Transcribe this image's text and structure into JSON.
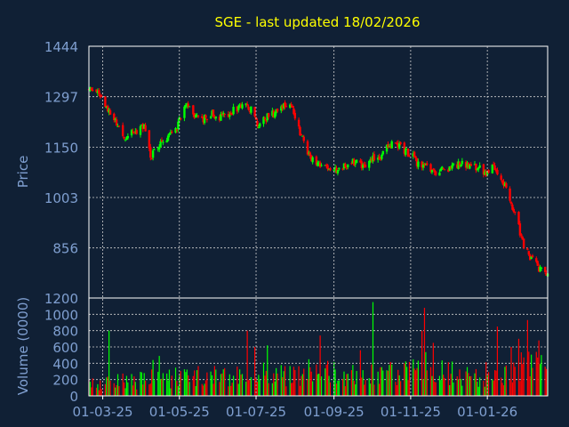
{
  "colors": {
    "background": "#102035",
    "title": "#ffff00",
    "axis_text": "#7f9fd0",
    "frame": "#ffffff",
    "grid": "#d0d0d0",
    "up": "#00ff00",
    "down": "#ff0000"
  },
  "chart_data": {
    "type": "candlestick",
    "title": "SGE - last updated 18/02/2026",
    "grid": true,
    "price_panel": {
      "ylabel": "Price",
      "ylim": [
        710,
        1444
      ],
      "yticks": [
        {
          "value": 1444,
          "label": "1444"
        },
        {
          "value": 1297,
          "label": "1297"
        },
        {
          "value": 1150,
          "label": "1150"
        },
        {
          "value": 1003,
          "label": "1003"
        },
        {
          "value": 856,
          "label": "856"
        },
        {
          "value": 710,
          "label": ""
        }
      ]
    },
    "volume_panel": {
      "ylabel": "Volume (0000)",
      "ylim": [
        0,
        1200
      ],
      "yticks": [
        {
          "value": 0,
          "label": "0"
        },
        {
          "value": 200,
          "label": "200"
        },
        {
          "value": 400,
          "label": "400"
        },
        {
          "value": 600,
          "label": "600"
        },
        {
          "value": 800,
          "label": "800"
        },
        {
          "value": 1000,
          "label": "1000"
        },
        {
          "value": 1200,
          "label": "1200"
        }
      ]
    },
    "x_axis": {
      "start": "2025-02-18",
      "end": "2026-02-18",
      "ticks": [
        {
          "date": "2025-03-01",
          "label": "01-03-25"
        },
        {
          "date": "2025-05-01",
          "label": "01-05-25"
        },
        {
          "date": "2025-07-01",
          "label": "01-07-25"
        },
        {
          "date": "2025-09-01",
          "label": "01-09-25"
        },
        {
          "date": "2025-11-01",
          "label": "01-11-25"
        },
        {
          "date": "2026-01-01",
          "label": "01-01-26"
        }
      ]
    },
    "price_path": [
      [
        "2025-02-18",
        1320
      ],
      [
        "2025-02-24",
        1315
      ],
      [
        "2025-03-01",
        1280
      ],
      [
        "2025-03-06",
        1255
      ],
      [
        "2025-03-12",
        1215
      ],
      [
        "2025-03-17",
        1175
      ],
      [
        "2025-03-22",
        1185
      ],
      [
        "2025-03-28",
        1195
      ],
      [
        "2025-04-02",
        1210
      ],
      [
        "2025-04-05",
        1205
      ],
      [
        "2025-04-08",
        1120
      ],
      [
        "2025-04-12",
        1150
      ],
      [
        "2025-04-17",
        1165
      ],
      [
        "2025-04-23",
        1185
      ],
      [
        "2025-04-30",
        1215
      ],
      [
        "2025-05-03",
        1255
      ],
      [
        "2025-05-08",
        1272
      ],
      [
        "2025-05-13",
        1245
      ],
      [
        "2025-05-20",
        1232
      ],
      [
        "2025-05-27",
        1248
      ],
      [
        "2025-06-03",
        1235
      ],
      [
        "2025-06-10",
        1252
      ],
      [
        "2025-06-17",
        1268
      ],
      [
        "2025-06-23",
        1272
      ],
      [
        "2025-06-27",
        1262
      ],
      [
        "2025-07-02",
        1210
      ],
      [
        "2025-07-06",
        1232
      ],
      [
        "2025-07-12",
        1240
      ],
      [
        "2025-07-18",
        1255
      ],
      [
        "2025-07-23",
        1268
      ],
      [
        "2025-07-27",
        1290
      ],
      [
        "2025-07-30",
        1262
      ],
      [
        "2025-08-02",
        1222
      ],
      [
        "2025-08-08",
        1165
      ],
      [
        "2025-08-13",
        1115
      ],
      [
        "2025-08-18",
        1100
      ],
      [
        "2025-08-26",
        1095
      ],
      [
        "2025-09-03",
        1085
      ],
      [
        "2025-09-10",
        1098
      ],
      [
        "2025-09-17",
        1105
      ],
      [
        "2025-09-24",
        1092
      ],
      [
        "2025-10-01",
        1118
      ],
      [
        "2025-10-08",
        1125
      ],
      [
        "2025-10-15",
        1158
      ],
      [
        "2025-10-20",
        1165
      ],
      [
        "2025-10-25",
        1150
      ],
      [
        "2025-10-30",
        1130
      ],
      [
        "2025-11-04",
        1118
      ],
      [
        "2025-11-09",
        1088
      ],
      [
        "2025-11-14",
        1092
      ],
      [
        "2025-11-20",
        1080
      ],
      [
        "2025-11-27",
        1085
      ],
      [
        "2025-12-05",
        1095
      ],
      [
        "2025-12-12",
        1098
      ],
      [
        "2025-12-20",
        1098
      ],
      [
        "2025-12-26",
        1085
      ],
      [
        "2026-01-02",
        1072
      ],
      [
        "2026-01-06",
        1095
      ],
      [
        "2026-01-10",
        1060
      ],
      [
        "2026-01-15",
        1040
      ],
      [
        "2026-01-20",
        985
      ],
      [
        "2026-01-24",
        950
      ],
      [
        "2026-01-28",
        880
      ],
      [
        "2026-02-02",
        840
      ],
      [
        "2026-02-08",
        810
      ],
      [
        "2026-02-13",
        790
      ],
      [
        "2026-02-18",
        778
      ]
    ],
    "volume_profile": [
      [
        "2025-02-18",
        150
      ],
      [
        "2025-04-01",
        230
      ],
      [
        "2025-05-01",
        250
      ],
      [
        "2025-07-01",
        300
      ],
      [
        "2025-08-15",
        330
      ],
      [
        "2025-10-01",
        280
      ],
      [
        "2025-11-10",
        420
      ],
      [
        "2025-12-15",
        250
      ],
      [
        "2026-01-15",
        360
      ],
      [
        "2026-02-18",
        420
      ]
    ],
    "volume_spikes": [
      [
        "2025-03-06",
        800
      ],
      [
        "2025-04-10",
        440
      ],
      [
        "2025-04-15",
        490
      ],
      [
        "2025-05-24",
        600
      ],
      [
        "2025-06-24",
        800
      ],
      [
        "2025-06-30",
        600
      ],
      [
        "2025-07-10",
        620
      ],
      [
        "2025-07-20",
        500
      ],
      [
        "2025-07-27",
        630
      ],
      [
        "2025-08-17",
        950
      ],
      [
        "2025-08-21",
        740
      ],
      [
        "2025-09-22",
        560
      ],
      [
        "2025-10-02",
        1150
      ],
      [
        "2025-10-25",
        600
      ],
      [
        "2025-11-01",
        590
      ],
      [
        "2025-11-10",
        800
      ],
      [
        "2025-11-12",
        1080
      ],
      [
        "2025-11-19",
        650
      ],
      [
        "2025-11-22",
        580
      ],
      [
        "2026-01-09",
        850
      ],
      [
        "2026-01-20",
        600
      ],
      [
        "2026-01-26",
        700
      ],
      [
        "2026-02-02",
        930
      ],
      [
        "2026-02-11",
        680
      ]
    ]
  }
}
